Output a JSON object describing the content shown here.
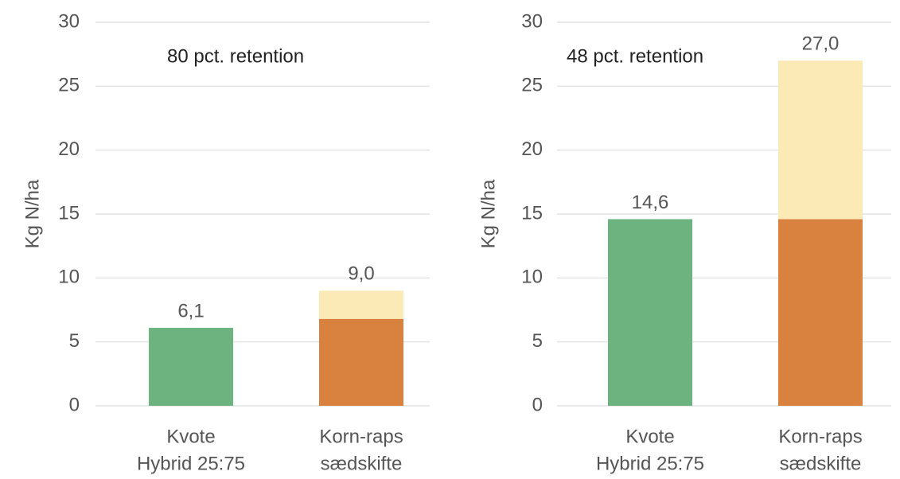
{
  "chart_data": [
    {
      "type": "stacked_bar",
      "title": "80 pct. retention",
      "y_label": "Kg N/ha",
      "categories": [
        [
          "Kvote",
          "Hybrid 25:75"
        ],
        [
          "Korn-raps",
          "sædskifte"
        ]
      ],
      "series": [
        {
          "color": "#6db37f",
          "values": [
            6.1,
            null
          ]
        },
        {
          "color": "#d9823f",
          "values": [
            null,
            6.8
          ]
        },
        {
          "color": "#fbeab5",
          "values": [
            null,
            2.2
          ]
        }
      ],
      "totals": [
        6.1,
        9.0
      ],
      "total_labels": [
        "6,1",
        "9,0"
      ],
      "ylim": [
        0,
        30
      ],
      "yticks": [
        0,
        5,
        10,
        15,
        20,
        25,
        30
      ],
      "grid": true
    },
    {
      "type": "stacked_bar",
      "title": "48 pct. retention",
      "y_label": "Kg N/ha",
      "categories": [
        [
          "Kvote",
          "Hybrid 25:75"
        ],
        [
          "Korn-raps",
          "sædskifte"
        ]
      ],
      "series": [
        {
          "color": "#6db37f",
          "values": [
            14.6,
            null
          ]
        },
        {
          "color": "#d9823f",
          "values": [
            null,
            14.6
          ]
        },
        {
          "color": "#fbeab5",
          "values": [
            null,
            12.4
          ]
        }
      ],
      "totals": [
        14.6,
        27.0
      ],
      "total_labels": [
        "14,6",
        "27,0"
      ],
      "ylim": [
        0,
        30
      ],
      "yticks": [
        0,
        5,
        10,
        15,
        20,
        25,
        30
      ],
      "grid": true
    }
  ]
}
